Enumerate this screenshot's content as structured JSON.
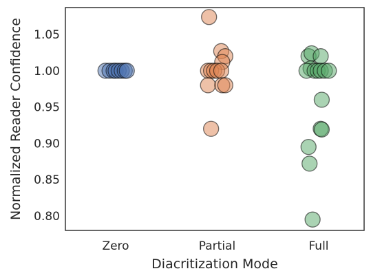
{
  "chart_data": {
    "type": "scatter",
    "title": "",
    "xlabel": "Diacritization Mode",
    "ylabel": "Normalized Reader Confidence",
    "categories": [
      "Zero",
      "Partial",
      "Full"
    ],
    "ylim": [
      0.78,
      1.087
    ],
    "yticks": [
      "0.80",
      "0.85",
      "0.90",
      "0.95",
      "1.00",
      "1.05"
    ],
    "grid": false,
    "legend": "none",
    "series": [
      {
        "category": "Zero",
        "color": "#4c72b0",
        "points": [
          {
            "x": -0.1,
            "y": 1.0
          },
          {
            "x": -0.06,
            "y": 1.0
          },
          {
            "x": -0.02,
            "y": 1.0
          },
          {
            "x": 0.0,
            "y": 1.0
          },
          {
            "x": 0.03,
            "y": 1.0
          },
          {
            "x": 0.06,
            "y": 1.0
          },
          {
            "x": 0.09,
            "y": 1.0
          },
          {
            "x": 0.11,
            "y": 1.0
          }
        ]
      },
      {
        "category": "Partial",
        "color": "#dd8452",
        "points": [
          {
            "x": -0.08,
            "y": 1.074
          },
          {
            "x": 0.04,
            "y": 1.027
          },
          {
            "x": 0.08,
            "y": 1.02
          },
          {
            "x": 0.05,
            "y": 1.012
          },
          {
            "x": -0.09,
            "y": 1.0
          },
          {
            "x": -0.06,
            "y": 1.0
          },
          {
            "x": -0.03,
            "y": 1.0
          },
          {
            "x": 0.0,
            "y": 1.0
          },
          {
            "x": 0.04,
            "y": 1.0
          },
          {
            "x": -0.09,
            "y": 0.98
          },
          {
            "x": 0.05,
            "y": 0.98
          },
          {
            "x": 0.08,
            "y": 0.98
          },
          {
            "x": -0.06,
            "y": 0.92
          }
        ]
      },
      {
        "category": "Full",
        "color": "#55a868",
        "points": [
          {
            "x": -0.1,
            "y": 1.02
          },
          {
            "x": -0.07,
            "y": 1.024
          },
          {
            "x": 0.02,
            "y": 1.02
          },
          {
            "x": -0.08,
            "y": 1.003
          },
          {
            "x": -0.12,
            "y": 1.0
          },
          {
            "x": -0.04,
            "y": 1.0
          },
          {
            "x": -0.01,
            "y": 1.0
          },
          {
            "x": 0.02,
            "y": 1.0
          },
          {
            "x": 0.06,
            "y": 1.0
          },
          {
            "x": 0.1,
            "y": 1.0
          },
          {
            "x": 0.03,
            "y": 0.96
          },
          {
            "x": 0.02,
            "y": 0.92
          },
          {
            "x": 0.03,
            "y": 0.919
          },
          {
            "x": -0.1,
            "y": 0.895
          },
          {
            "x": -0.09,
            "y": 0.872
          },
          {
            "x": -0.06,
            "y": 0.795
          }
        ]
      }
    ]
  }
}
